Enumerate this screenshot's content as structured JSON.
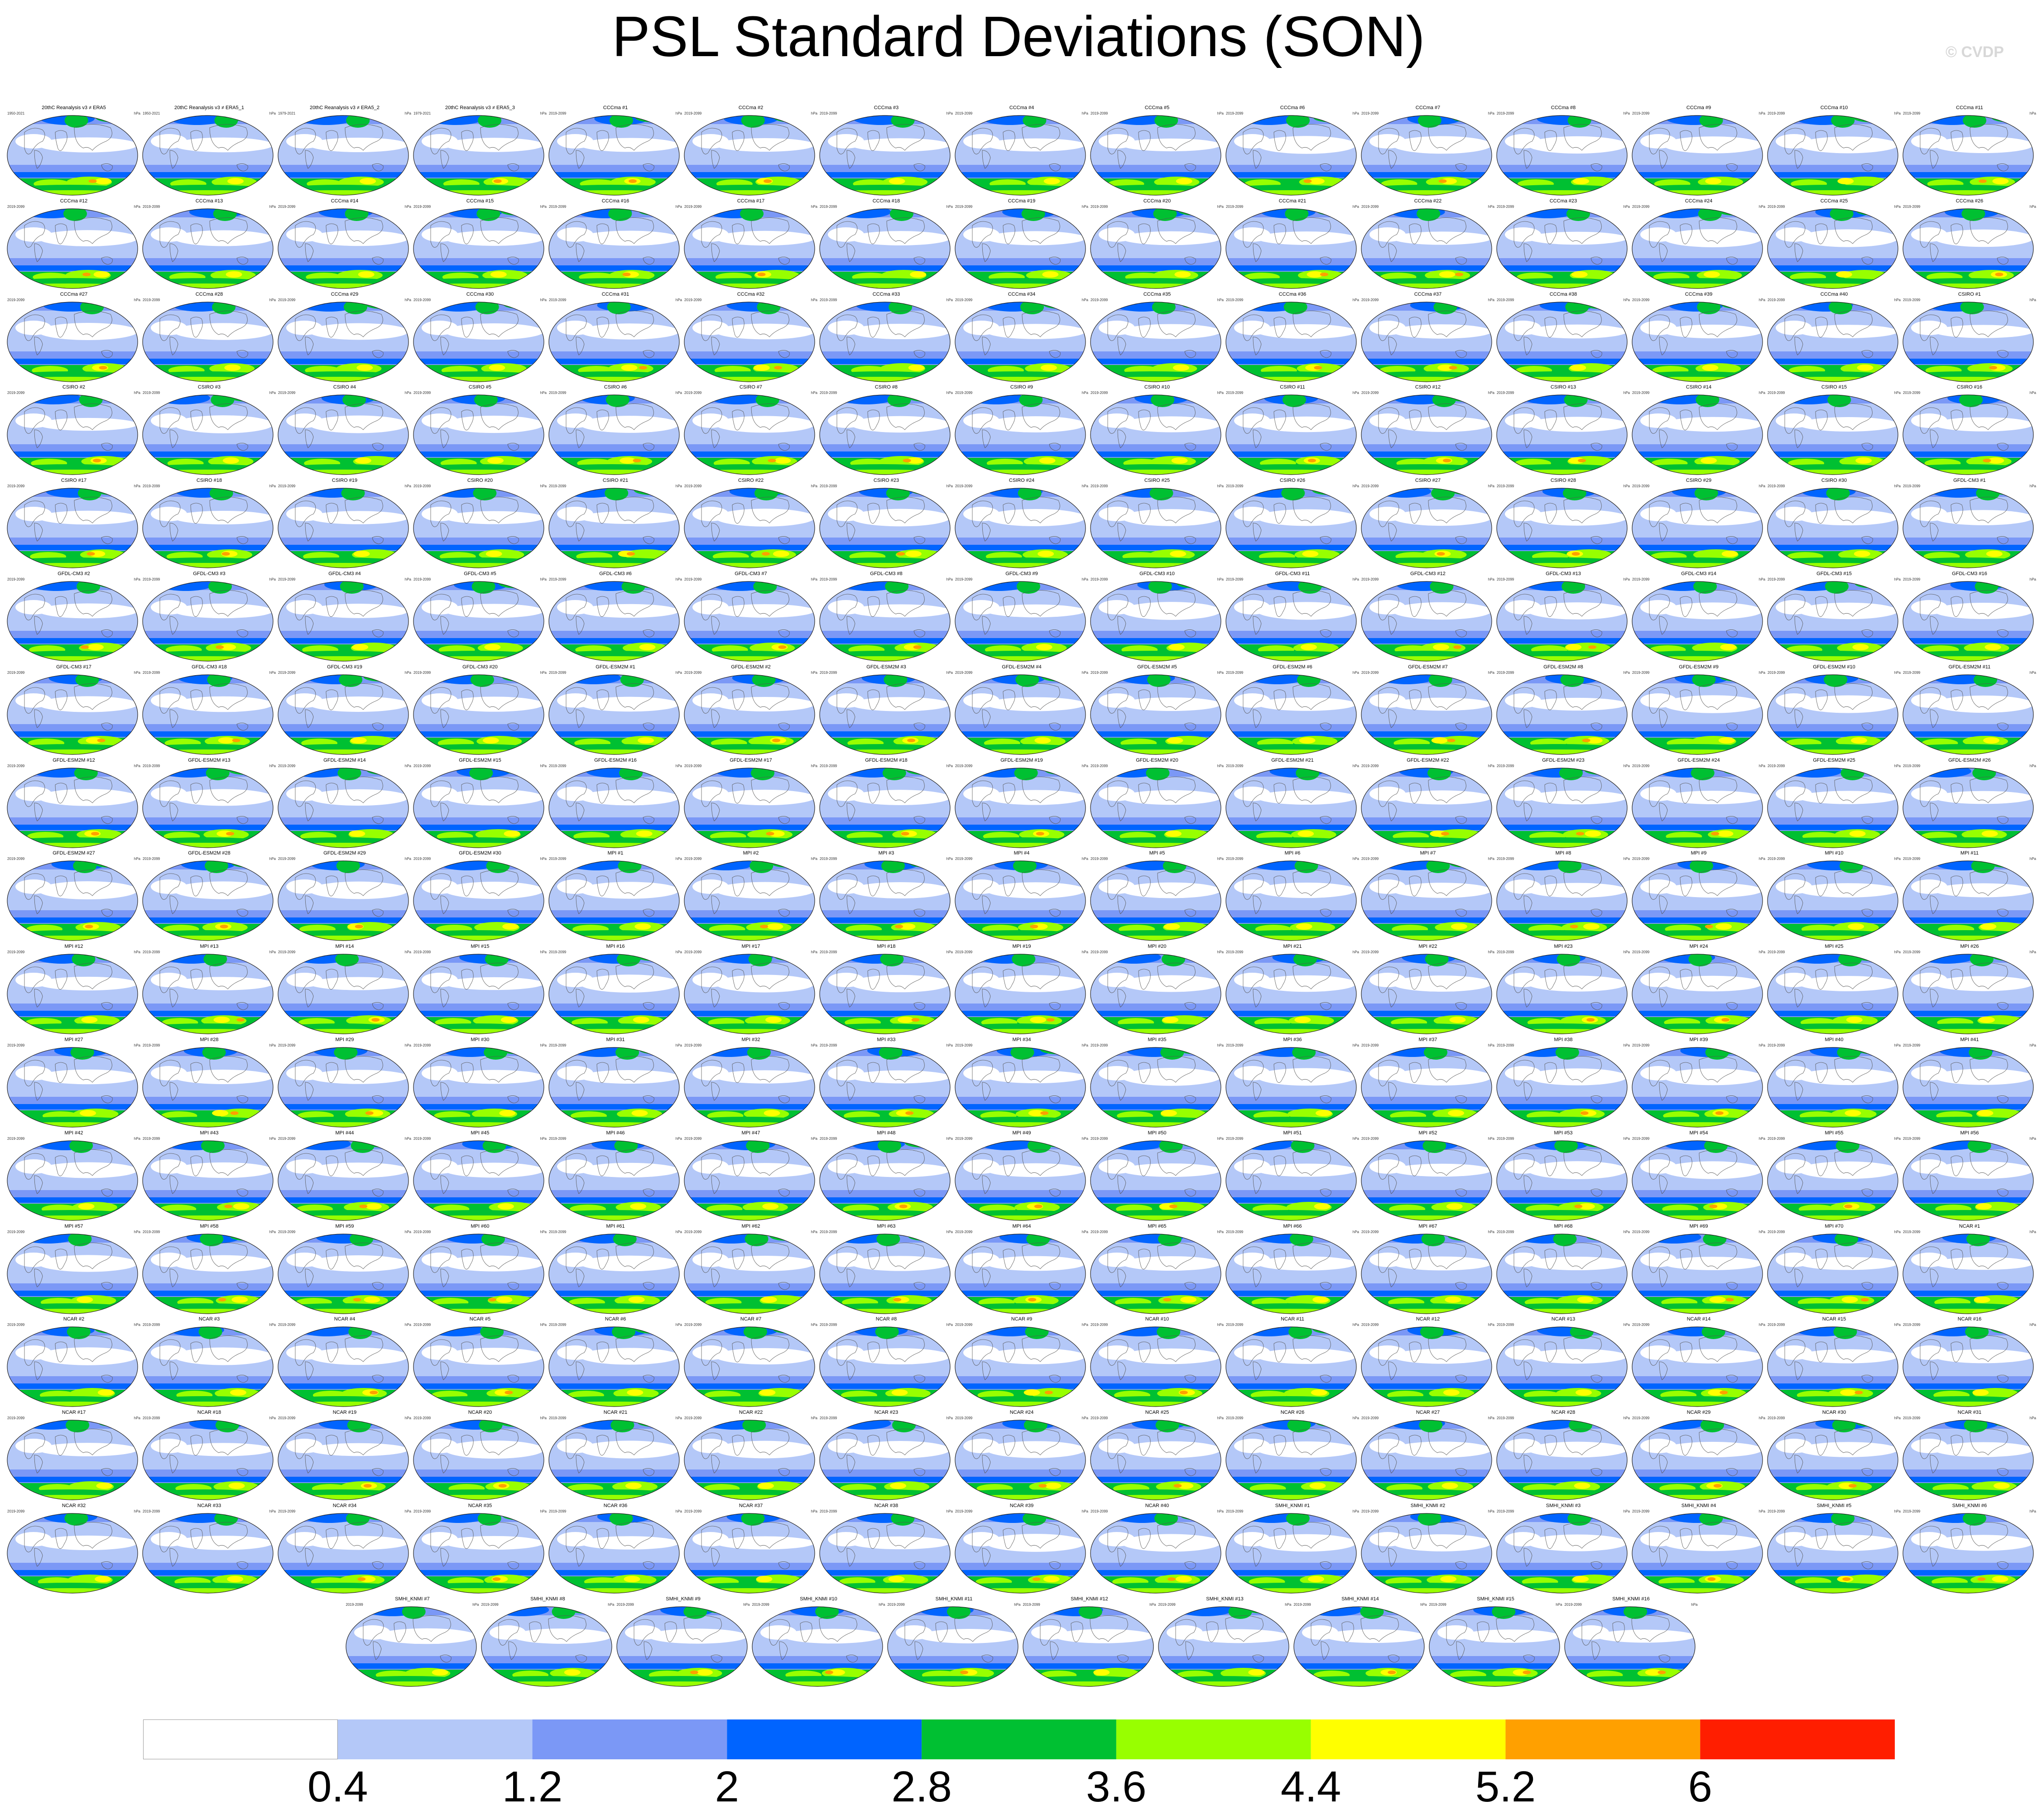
{
  "title": "PSL Standard Deviations (SON)",
  "copyright": "© CVDP",
  "chart_data": {
    "type": "heatmap",
    "description_kind": "small-multiples of global map fields",
    "units": "hPa",
    "colorbar": {
      "levels": [
        0.4,
        1.2,
        2,
        2.8,
        3.6,
        4.4,
        5.2,
        6
      ],
      "labels": [
        "0.4",
        "1.2",
        "2",
        "2.8",
        "3.6",
        "4.4",
        "5.2",
        "6"
      ],
      "colors": [
        "#ffffff",
        "#b4c8f8",
        "#7b98f6",
        "#0064ff",
        "#00c032",
        "#98ff00",
        "#ffff00",
        "#ffa000",
        "#ff1e00"
      ]
    },
    "periods": {
      "obs_first": "1950-2021",
      "obs": "1979-2021",
      "model": "2019-2099"
    },
    "panels": [
      {
        "title": "20thC Reanalysis v3 ≠ ERA5",
        "period": "1950-2021",
        "unit": "hPa"
      },
      {
        "title": "20thC Reanalysis v3 ≠ ERA5_1",
        "period": "1950-2021",
        "unit": "hPa"
      },
      {
        "title": "20thC Reanalysis v3 ≠ ERA5_2",
        "period": "1979-2021",
        "unit": "hPa"
      },
      {
        "title": "20thC Reanalysis v3 ≠ ERA5_3",
        "period": "1979-2021",
        "unit": "hPa"
      }
    ],
    "model_groups": [
      {
        "name": "CCCma",
        "count": 40
      },
      {
        "name": "CSIRO",
        "count": 30
      },
      {
        "name": "GFDL-CM3",
        "count": 20
      },
      {
        "name": "GFDL-ESM2M",
        "count": 30
      },
      {
        "name": "MPI",
        "count": 70
      },
      {
        "name": "NCAR",
        "count": 40
      },
      {
        "name": "SMHI_KNMI",
        "count": 16
      }
    ]
  }
}
